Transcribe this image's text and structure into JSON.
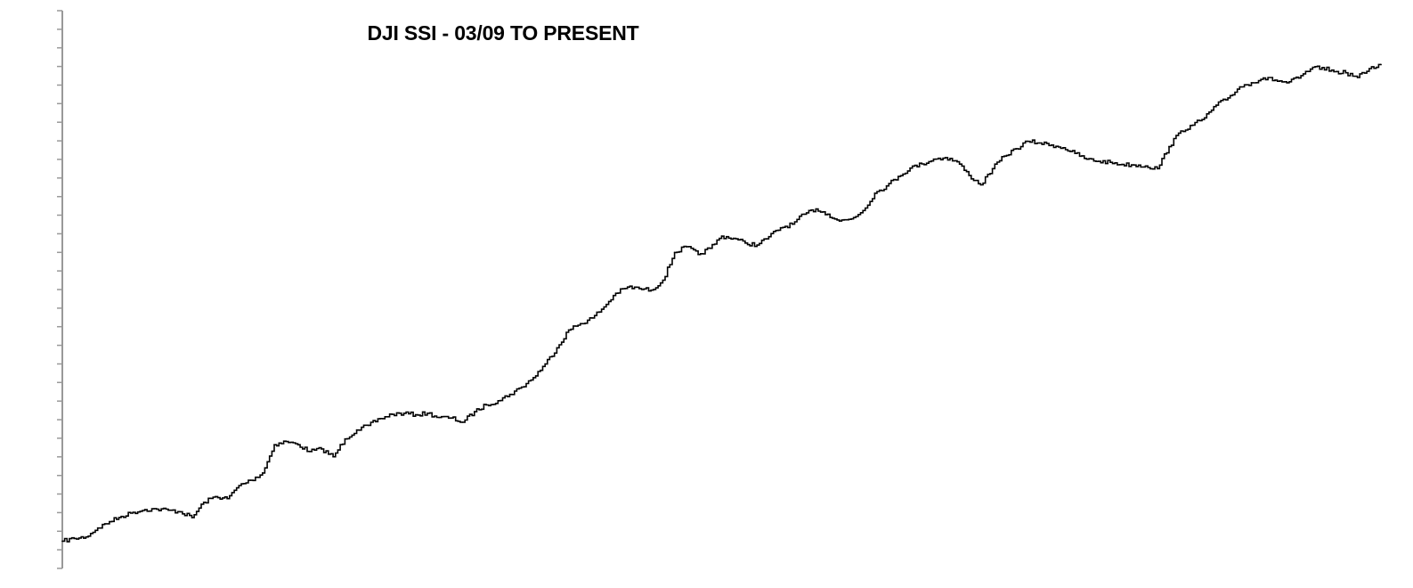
{
  "chart_data": {
    "type": "line",
    "title": "DJI SSI - 03/09 TO PRESENT",
    "xlabel": "",
    "ylabel": "",
    "y_ticks_labeled": false,
    "y_tick_count": 31,
    "ylim": [
      0,
      100
    ],
    "grid": false,
    "line_color": "#000000",
    "series": [
      {
        "values": [
          1.3,
          1.8,
          2.1,
          3.8,
          5.0,
          6.0,
          6.8,
          7.3,
          7.4,
          7.2,
          6.9,
          5.8,
          8.7,
          9.8,
          9.4,
          11.9,
          12.9,
          14.3,
          19.7,
          20.3,
          19.7,
          18.4,
          18.9,
          17.4,
          20.8,
          22.5,
          23.4,
          24.7,
          25.5,
          25.7,
          25.4,
          25.7,
          24.9,
          24.8,
          24.0,
          26.0,
          27.3,
          28.1,
          29.3,
          30.7,
          32.5,
          35.1,
          38.2,
          41.6,
          42.8,
          43.9,
          46.0,
          48.6,
          49.8,
          49.5,
          49.2,
          51.1,
          56.4,
          57.5,
          56.0,
          57.2,
          59.5,
          59.1,
          58.2,
          57.8,
          59.4,
          61.1,
          61.8,
          63.7,
          64.7,
          63.7,
          62.4,
          62.8,
          64.4,
          67.7,
          69.1,
          70.9,
          72.5,
          73.3,
          74.2,
          74.5,
          73.7,
          71.1,
          69.3,
          72.4,
          74.8,
          76.2,
          77.6,
          77.3,
          76.9,
          76.4,
          75.3,
          74.2,
          73.8,
          73.6,
          73.2,
          73.1,
          72.9,
          72.4,
          76.6,
          79.6,
          80.7,
          82.1,
          84.5,
          85.9,
          88.0,
          88.8,
          89.7,
          89.3,
          88.8,
          89.7,
          91.4,
          91.7,
          90.9,
          90.7,
          89.8,
          91.5,
          92.3
        ]
      }
    ]
  }
}
